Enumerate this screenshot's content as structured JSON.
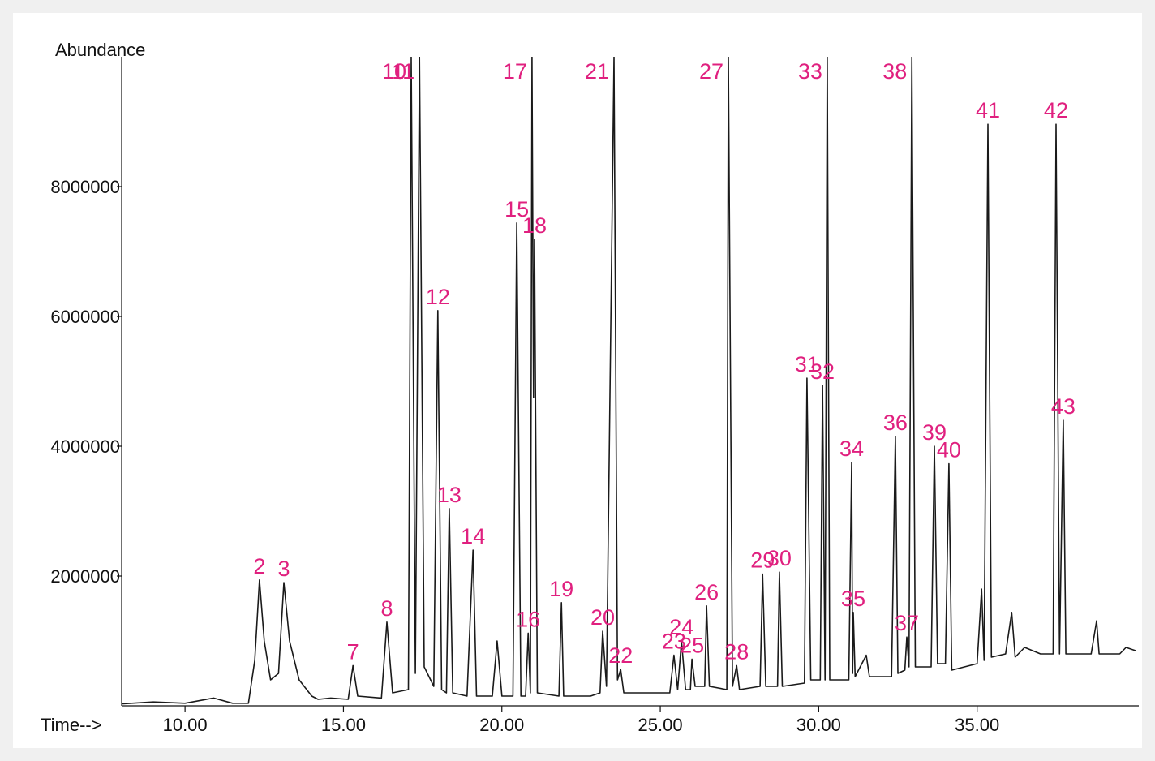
{
  "chart_data": {
    "type": "line",
    "y_label": "Abundance",
    "x_label": "Time-->",
    "color": "#1a1a1a",
    "label_color": "#e0207f",
    "xlim": [
      8,
      40
    ],
    "ylim": [
      0,
      10000000
    ],
    "xticks": [
      {
        "value": 10,
        "label": "10.00"
      },
      {
        "value": 15,
        "label": "15.00"
      },
      {
        "value": 20,
        "label": "20.00"
      },
      {
        "value": 25,
        "label": "25.00"
      },
      {
        "value": 30,
        "label": "30.00"
      },
      {
        "value": 35,
        "label": "35.00"
      }
    ],
    "yticks": [
      2000000,
      4000000,
      6000000,
      8000000
    ],
    "x": [
      8.0,
      9.0,
      10.0,
      10.9,
      11.5,
      12.0,
      12.2,
      12.35,
      12.5,
      12.7,
      12.95,
      13.12,
      13.3,
      13.6,
      14.0,
      14.2,
      14.6,
      15.15,
      15.3,
      15.45,
      16.2,
      16.37,
      16.55,
      17.05,
      17.14,
      17.27,
      17.4,
      17.55,
      17.85,
      17.98,
      18.1,
      18.25,
      18.34,
      18.45,
      18.9,
      19.09,
      19.2,
      19.7,
      19.85,
      20.0,
      20.35,
      20.47,
      20.6,
      20.75,
      20.83,
      20.9,
      20.95,
      21.0,
      21.03,
      21.12,
      21.8,
      21.88,
      21.95,
      22.8,
      23.1,
      23.18,
      23.3,
      23.54,
      23.65,
      23.75,
      23.85,
      25.3,
      25.43,
      25.55,
      25.67,
      25.8,
      25.95,
      26.0,
      26.1,
      26.4,
      26.46,
      26.55,
      27.1,
      27.15,
      27.28,
      27.41,
      27.5,
      28.15,
      28.23,
      28.33,
      28.7,
      28.76,
      28.85,
      29.55,
      29.63,
      29.75,
      30.05,
      30.12,
      30.2,
      30.27,
      30.35,
      30.95,
      31.04,
      31.07,
      31.09,
      31.15,
      31.5,
      31.6,
      32.3,
      32.42,
      32.5,
      32.72,
      32.78,
      32.85,
      32.94,
      33.05,
      33.55,
      33.65,
      33.75,
      34.0,
      34.11,
      34.2,
      35.0,
      35.14,
      35.22,
      35.34,
      35.45,
      35.9,
      36.09,
      36.2,
      36.5,
      37.0,
      37.4,
      37.49,
      37.6,
      37.72,
      37.8,
      38.6,
      38.77,
      38.85,
      39.5,
      39.7,
      40.0
    ],
    "values": [
      30000,
      60000,
      40000,
      120000,
      40000,
      40000,
      700000,
      1940000,
      1000000,
      400000,
      500000,
      1900000,
      1000000,
      400000,
      150000,
      100000,
      120000,
      100000,
      620000,
      150000,
      120000,
      1290000,
      200000,
      250000,
      10000000,
      500000,
      10000000,
      600000,
      300000,
      6090000,
      250000,
      200000,
      3040000,
      200000,
      150000,
      2400000,
      150000,
      150000,
      1000000,
      150000,
      150000,
      7440000,
      150000,
      150000,
      1120000,
      200000,
      10000000,
      4750000,
      7190000,
      200000,
      150000,
      1590000,
      150000,
      150000,
      200000,
      1150000,
      300000,
      10000000,
      400000,
      560000,
      200000,
      200000,
      780000,
      250000,
      1000000,
      250000,
      250000,
      720000,
      300000,
      300000,
      1540000,
      300000,
      250000,
      10000000,
      300000,
      620000,
      250000,
      300000,
      2030000,
      300000,
      300000,
      2060000,
      300000,
      350000,
      5050000,
      400000,
      400000,
      4940000,
      400000,
      10000000,
      400000,
      400000,
      3750000,
      500000,
      1440000,
      450000,
      780000,
      450000,
      450000,
      4150000,
      500000,
      550000,
      1060000,
      600000,
      10000000,
      600000,
      600000,
      4000000,
      650000,
      650000,
      3730000,
      550000,
      650000,
      1800000,
      700000,
      8960000,
      750000,
      800000,
      1440000,
      750000,
      900000,
      800000,
      800000,
      8960000,
      800000,
      4400000,
      800000,
      800000,
      1310000,
      800000,
      800000,
      900000,
      850000
    ],
    "peaks": [
      {
        "label": "2",
        "x": 12.35,
        "value": 1940000
      },
      {
        "label": "3",
        "x": 13.12,
        "value": 1900000
      },
      {
        "label": "7",
        "x": 15.3,
        "value": 620000
      },
      {
        "label": "8",
        "x": 16.37,
        "value": 1290000
      },
      {
        "label": "10",
        "x": 17.14,
        "value": 10000000
      },
      {
        "label": "11",
        "x": 17.4,
        "value": 10000000
      },
      {
        "label": "12",
        "x": 17.98,
        "value": 6090000
      },
      {
        "label": "13",
        "x": 18.34,
        "value": 3040000
      },
      {
        "label": "14",
        "x": 19.09,
        "value": 2400000
      },
      {
        "label": "15",
        "x": 20.47,
        "value": 7440000
      },
      {
        "label": "16",
        "x": 20.83,
        "value": 1120000
      },
      {
        "label": "17",
        "x": 20.95,
        "value": 10000000
      },
      {
        "label": "18",
        "x": 21.03,
        "value": 7190000
      },
      {
        "label": "19",
        "x": 21.88,
        "value": 1590000
      },
      {
        "label": "20",
        "x": 23.18,
        "value": 1150000
      },
      {
        "label": "21",
        "x": 23.54,
        "value": 10000000
      },
      {
        "label": "22",
        "x": 23.75,
        "value": 560000
      },
      {
        "label": "23",
        "x": 25.43,
        "value": 780000
      },
      {
        "label": "24",
        "x": 25.67,
        "value": 1000000
      },
      {
        "label": "25",
        "x": 26.0,
        "value": 720000
      },
      {
        "label": "26",
        "x": 26.46,
        "value": 1540000
      },
      {
        "label": "27",
        "x": 27.15,
        "value": 10000000
      },
      {
        "label": "28",
        "x": 27.41,
        "value": 620000
      },
      {
        "label": "29",
        "x": 28.23,
        "value": 2030000
      },
      {
        "label": "30",
        "x": 28.76,
        "value": 2060000
      },
      {
        "label": "31",
        "x": 29.63,
        "value": 5050000
      },
      {
        "label": "32",
        "x": 30.12,
        "value": 4940000
      },
      {
        "label": "33",
        "x": 30.27,
        "value": 10000000
      },
      {
        "label": "34",
        "x": 31.04,
        "value": 3750000
      },
      {
        "label": "35",
        "x": 31.09,
        "value": 1440000
      },
      {
        "label": "36",
        "x": 32.42,
        "value": 4150000
      },
      {
        "label": "37",
        "x": 32.78,
        "value": 1060000
      },
      {
        "label": "38",
        "x": 32.94,
        "value": 10000000
      },
      {
        "label": "39",
        "x": 33.65,
        "value": 4000000
      },
      {
        "label": "40",
        "x": 34.11,
        "value": 3730000
      },
      {
        "label": "41",
        "x": 35.34,
        "value": 8960000
      },
      {
        "label": "42",
        "x": 37.49,
        "value": 8960000
      },
      {
        "label": "43",
        "x": 37.72,
        "value": 4400000
      }
    ]
  }
}
